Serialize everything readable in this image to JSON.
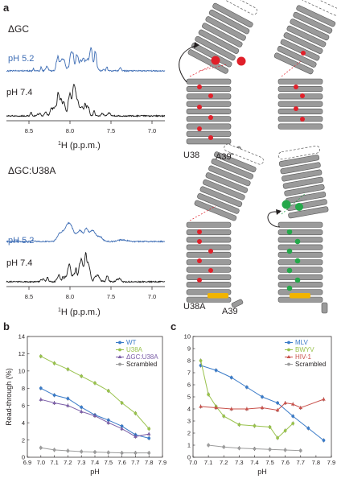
{
  "panel_a": {
    "letter": "a",
    "spectra": [
      {
        "title": "ΔGC",
        "blue_label": "pH 5.2",
        "black_label": "pH 7.4",
        "xticks": [
          "8.5",
          "8.0",
          "7.5",
          "7.0"
        ],
        "xlabel_sup": "1",
        "xlabel_main": "H (p.p.m.)"
      },
      {
        "title": "ΔGC:U38A",
        "blue_label": "pH 5.2",
        "black_label": "pH 7.4",
        "xticks": [
          "8.5",
          "8.0",
          "7.5",
          "7.0"
        ],
        "xlabel_sup": "1",
        "xlabel_main": "H (p.p.m.)"
      }
    ],
    "structure_labels": {
      "top_left_a": "U38",
      "top_right_a": "A39",
      "bottom_left_a": "U38A",
      "bottom_right_a": "A39"
    },
    "colors": {
      "blue_trace": "#3f6eb5",
      "black_trace": "#1a1a1a",
      "helix": "#9a9a9a",
      "red_site": "#e0202a",
      "green_site": "#24a84a",
      "yellow_bar": "#f2b400"
    }
  },
  "chart_data": [
    {
      "panel": "b",
      "type": "line",
      "ylabel": "Read-through (%)",
      "xlabel": "pH",
      "xlim": [
        6.9,
        7.9
      ],
      "ylim": [
        0,
        14
      ],
      "xticks": [
        "6.9",
        "7.0",
        "7.1",
        "7.2",
        "7.3",
        "7.4",
        "7.5",
        "7.6",
        "7.7",
        "7.8",
        "7.9"
      ],
      "yticks": [
        "0",
        "2",
        "4",
        "6",
        "8",
        "10",
        "12",
        "14"
      ],
      "grid": false,
      "legend": "top-right",
      "series": [
        {
          "name": "WT",
          "color": "#3a7bc8",
          "marker": "circle",
          "x": [
            7.0,
            7.1,
            7.2,
            7.3,
            7.4,
            7.5,
            7.6,
            7.7,
            7.8
          ],
          "y": [
            8.0,
            7.2,
            6.8,
            5.8,
            4.9,
            4.3,
            3.6,
            2.6,
            2.2
          ]
        },
        {
          "name": "U38A",
          "color": "#99c24d",
          "marker": "circle",
          "x": [
            7.0,
            7.1,
            7.2,
            7.3,
            7.4,
            7.5,
            7.6,
            7.7,
            7.8
          ],
          "y": [
            11.7,
            10.9,
            10.2,
            9.4,
            8.6,
            7.7,
            6.3,
            5.1,
            3.3
          ]
        },
        {
          "name": "ΔGC:U38A",
          "color": "#7b5ea7",
          "marker": "triangle",
          "x": [
            7.0,
            7.1,
            7.2,
            7.3,
            7.4,
            7.5,
            7.6,
            7.7,
            7.8
          ],
          "y": [
            6.7,
            6.3,
            6.0,
            5.3,
            4.8,
            4.0,
            3.3,
            2.4,
            2.7
          ]
        },
        {
          "name": "Scrambled",
          "color": "#9c9c9c",
          "marker": "circle",
          "x": [
            7.0,
            7.1,
            7.2,
            7.3,
            7.4,
            7.5,
            7.6,
            7.7,
            7.8
          ],
          "y": [
            1.1,
            0.85,
            0.75,
            0.65,
            0.6,
            0.55,
            0.5,
            0.5,
            0.5
          ]
        }
      ]
    },
    {
      "panel": "c",
      "type": "line",
      "xlabel": "pH",
      "xlim": [
        7.0,
        7.9
      ],
      "ylim": [
        0,
        10
      ],
      "xticks": [
        "7.0",
        "7.1",
        "7.2",
        "7.3",
        "7.4",
        "7.5",
        "7.6",
        "7.7",
        "7.8",
        "7.9"
      ],
      "yticks": [
        "0",
        "1",
        "2",
        "3",
        "4",
        "5",
        "6",
        "7",
        "8",
        "9",
        "10"
      ],
      "grid": false,
      "legend": "top-right",
      "series": [
        {
          "name": "MLV",
          "color": "#3a7bc8",
          "marker": "circle",
          "x": [
            7.05,
            7.15,
            7.25,
            7.35,
            7.45,
            7.55,
            7.65,
            7.75,
            7.85
          ],
          "y": [
            7.6,
            7.2,
            6.6,
            5.8,
            5.0,
            4.5,
            3.4,
            2.4,
            1.4
          ]
        },
        {
          "name": "BWYV",
          "color": "#99c24d",
          "marker": "circle",
          "x": [
            7.05,
            7.1,
            7.15,
            7.2,
            7.3,
            7.4,
            7.5,
            7.55,
            7.6,
            7.65
          ],
          "y": [
            8.0,
            5.2,
            4.2,
            3.4,
            2.7,
            2.6,
            2.5,
            1.6,
            2.2,
            2.8
          ]
        },
        {
          "name": "HIV-1",
          "color": "#c8504a",
          "marker": "triangle",
          "x": [
            7.05,
            7.15,
            7.25,
            7.35,
            7.45,
            7.55,
            7.6,
            7.65,
            7.7,
            7.85
          ],
          "y": [
            4.2,
            4.1,
            4.0,
            4.0,
            4.1,
            3.9,
            4.5,
            4.4,
            4.1,
            4.8
          ]
        },
        {
          "name": "Scrambled",
          "color": "#9c9c9c",
          "marker": "circle",
          "x": [
            7.1,
            7.2,
            7.3,
            7.4,
            7.5,
            7.6,
            7.7
          ],
          "y": [
            1.0,
            0.85,
            0.75,
            0.7,
            0.65,
            0.6,
            0.55
          ]
        }
      ]
    }
  ],
  "panel_letters": {
    "b": "b",
    "c": "c"
  }
}
